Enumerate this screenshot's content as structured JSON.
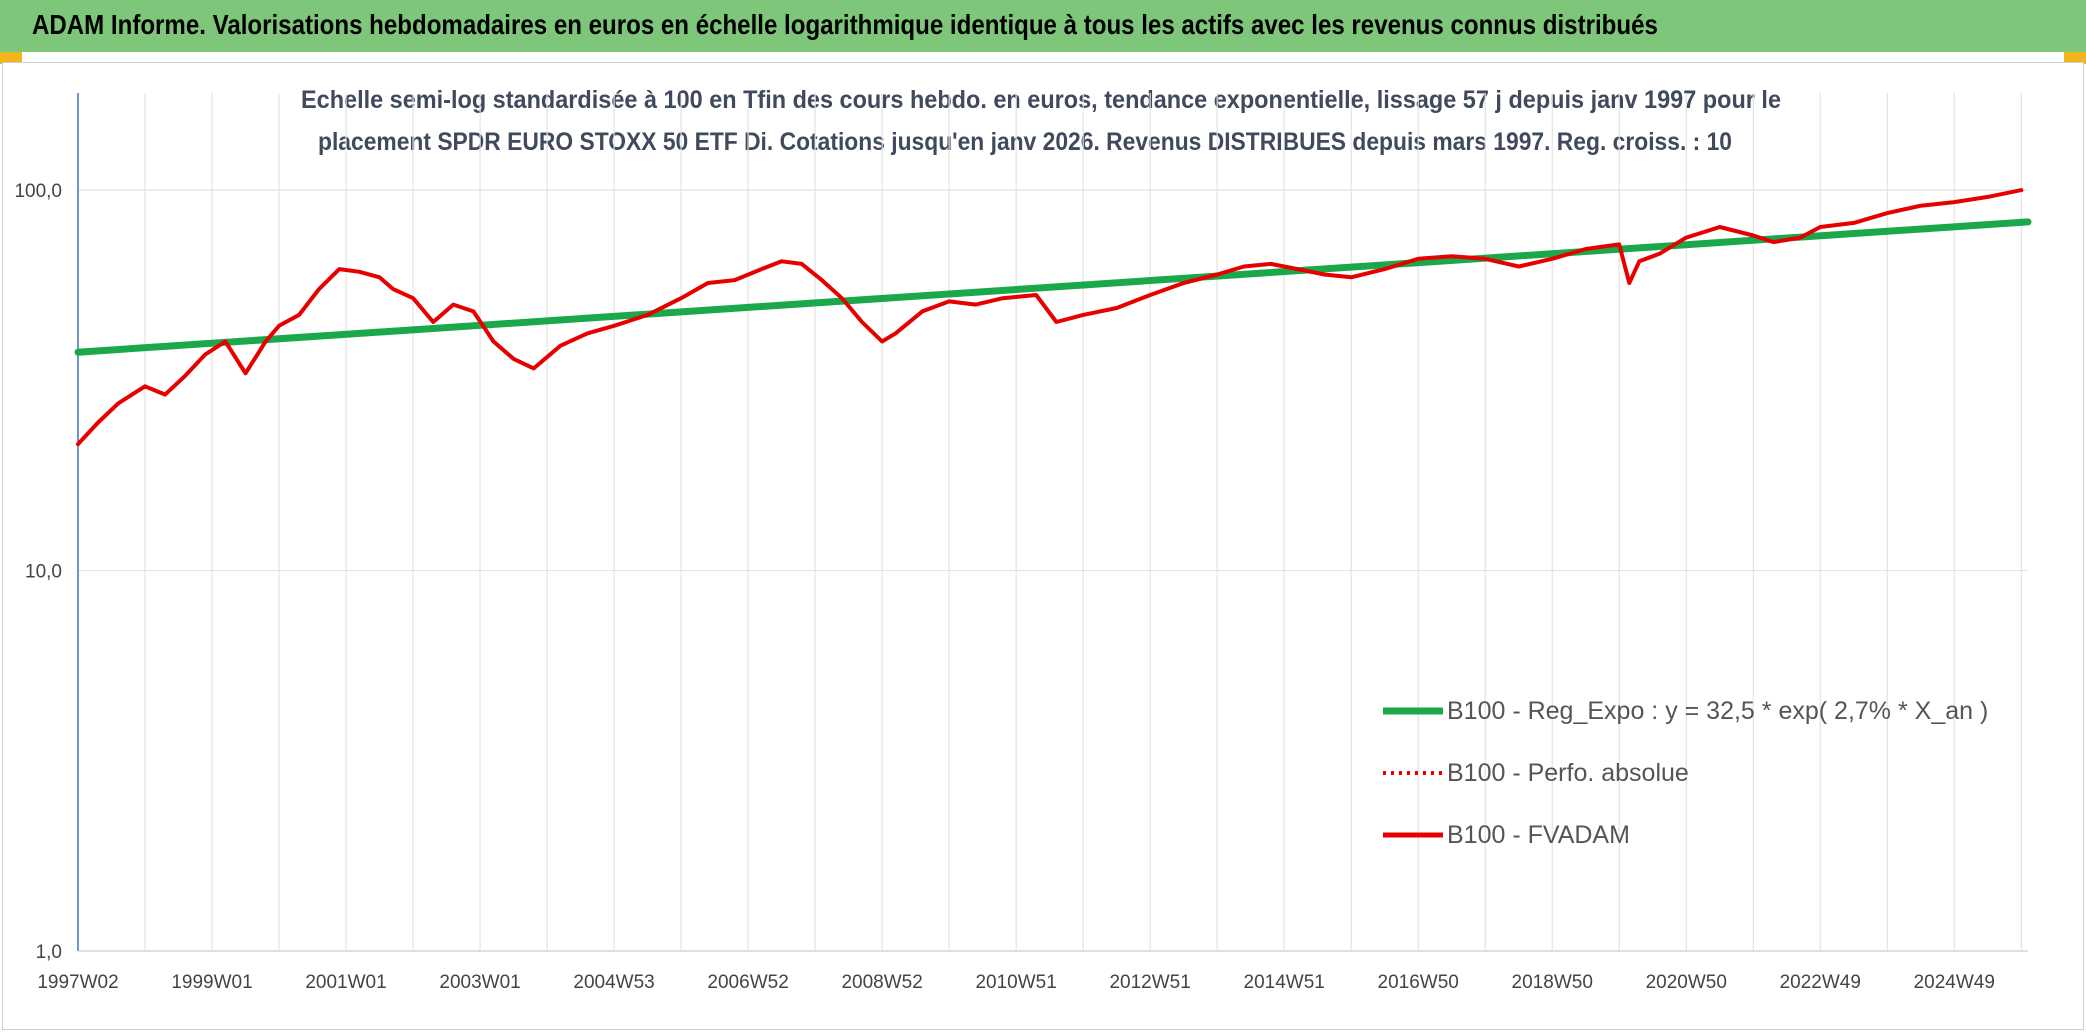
{
  "header": {
    "title": "ADAM Informe. Valorisations hebdomadaires en euros en échelle logarithmique identique à tous les actifs avec les revenus connus distribués"
  },
  "colors": {
    "header_bg": "#7dc67a",
    "accent_tab": "#f2b51c",
    "trend_line": "#1aa84b",
    "price_line": "#e60000"
  },
  "chart_data": {
    "type": "line",
    "subtitle_line1": "Echelle semi-log standardisée à 100 en Tfin des cours hebdo. en euros, tendance exponentielle, lissage 57 j depuis janv 1997 pour le",
    "subtitle_line2": "placement SPDR EURO STOXX 50 ETF Di. Cotations jusqu'en janv 2026. Revenus DISTRIBUES depuis mars 1997. Reg. croiss. : 10",
    "y_scale": "log",
    "ylim": [
      1,
      180
    ],
    "y_ticks": [
      "1,0",
      "10,0",
      "100,0"
    ],
    "y_tick_values": [
      1,
      10,
      100
    ],
    "x_range": [
      1997.0,
      2026.1
    ],
    "x_tick_labels": [
      "1997W02",
      "1999W01",
      "2001W01",
      "2003W01",
      "2004W53",
      "2006W52",
      "2008W52",
      "2010W51",
      "2012W51",
      "2014W51",
      "2016W50",
      "2018W50",
      "2020W50",
      "2022W49",
      "2024W49"
    ],
    "x_tick_years": [
      1997.0,
      1999.0,
      2001.0,
      2003.0,
      2005.0,
      2007.0,
      2009.0,
      2011.0,
      2013.0,
      2015.0,
      2017.0,
      2019.0,
      2021.0,
      2023.0,
      2025.0
    ],
    "legend_position": "bottom-right",
    "grid": true,
    "series": [
      {
        "name": "B100 - Reg_Expo : y = 32,5 * exp( 2,7% *  X_an )",
        "style": "solid-thick",
        "color": "#1aa84b",
        "x": [
          1997.0,
          2026.1
        ],
        "y": [
          37.5,
          82.5
        ]
      },
      {
        "name": "B100 - Perfo. absolue",
        "style": "dotted",
        "color": "#e60000",
        "x": [],
        "y": []
      },
      {
        "name": "B100 - FVADAM",
        "style": "solid",
        "color": "#e60000",
        "x": [
          1997.0,
          1997.3,
          1997.6,
          1998.0,
          1998.3,
          1998.6,
          1998.9,
          1999.2,
          1999.5,
          1999.8,
          2000.0,
          2000.3,
          2000.6,
          2000.9,
          2001.2,
          2001.5,
          2001.7,
          2002.0,
          2002.3,
          2002.6,
          2002.9,
          2003.2,
          2003.5,
          2003.8,
          2004.2,
          2004.6,
          2005.0,
          2005.5,
          2006.0,
          2006.4,
          2006.8,
          2007.2,
          2007.5,
          2007.8,
          2008.1,
          2008.4,
          2008.7,
          2009.0,
          2009.2,
          2009.6,
          2010.0,
          2010.4,
          2010.8,
          2011.3,
          2011.6,
          2012.0,
          2012.5,
          2013.0,
          2013.5,
          2014.0,
          2014.4,
          2014.8,
          2015.2,
          2015.6,
          2016.0,
          2016.5,
          2017.0,
          2017.5,
          2018.0,
          2018.5,
          2019.0,
          2019.5,
          2020.0,
          2020.15,
          2020.3,
          2020.6,
          2021.0,
          2021.5,
          2022.0,
          2022.3,
          2022.7,
          2023.0,
          2023.5,
          2024.0,
          2024.5,
          2025.0,
          2025.5,
          2026.0
        ],
        "y": [
          21.5,
          24.5,
          27.5,
          30.5,
          29.0,
          32.5,
          37.0,
          40.0,
          33.0,
          40.0,
          44.0,
          47.0,
          55.0,
          62.0,
          61.0,
          59.0,
          55.0,
          52.0,
          45.0,
          50.0,
          48.0,
          40.0,
          36.0,
          34.0,
          39.0,
          42.0,
          44.0,
          47.0,
          52.0,
          57.0,
          58.0,
          62.0,
          65.0,
          64.0,
          58.0,
          52.0,
          45.0,
          40.0,
          42.0,
          48.0,
          51.0,
          50.0,
          52.0,
          53.0,
          45.0,
          47.0,
          49.0,
          53.0,
          57.0,
          60.0,
          63.0,
          64.0,
          62.0,
          60.0,
          59.0,
          62.0,
          66.0,
          67.0,
          66.0,
          63.0,
          66.0,
          70.0,
          72.0,
          57.0,
          65.0,
          68.0,
          75.0,
          80.0,
          76.0,
          73.0,
          75.0,
          80.0,
          82.0,
          87.0,
          91.0,
          93.0,
          96.0,
          100.0
        ]
      }
    ]
  }
}
